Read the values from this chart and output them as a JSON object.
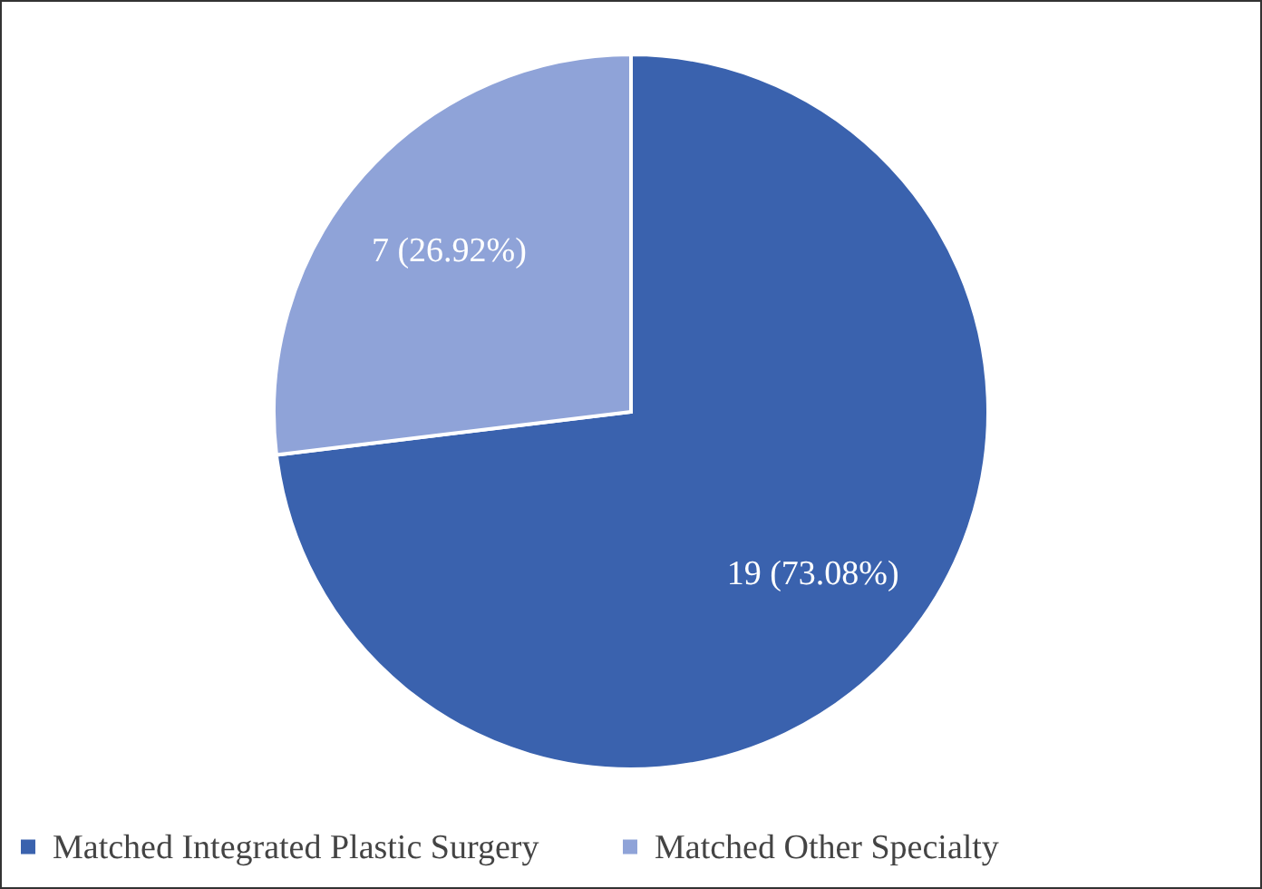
{
  "chart_data": {
    "type": "pie",
    "categories": [
      "Matched Integrated Plastic Surgery",
      "Matched Other Specialty"
    ],
    "values": [
      19,
      7
    ],
    "colors": [
      "#3a62ae",
      "#8fa3d8"
    ],
    "value_labels": [
      "19 (73.08%)",
      "7 (26.92%)"
    ],
    "legend": "bottom"
  }
}
